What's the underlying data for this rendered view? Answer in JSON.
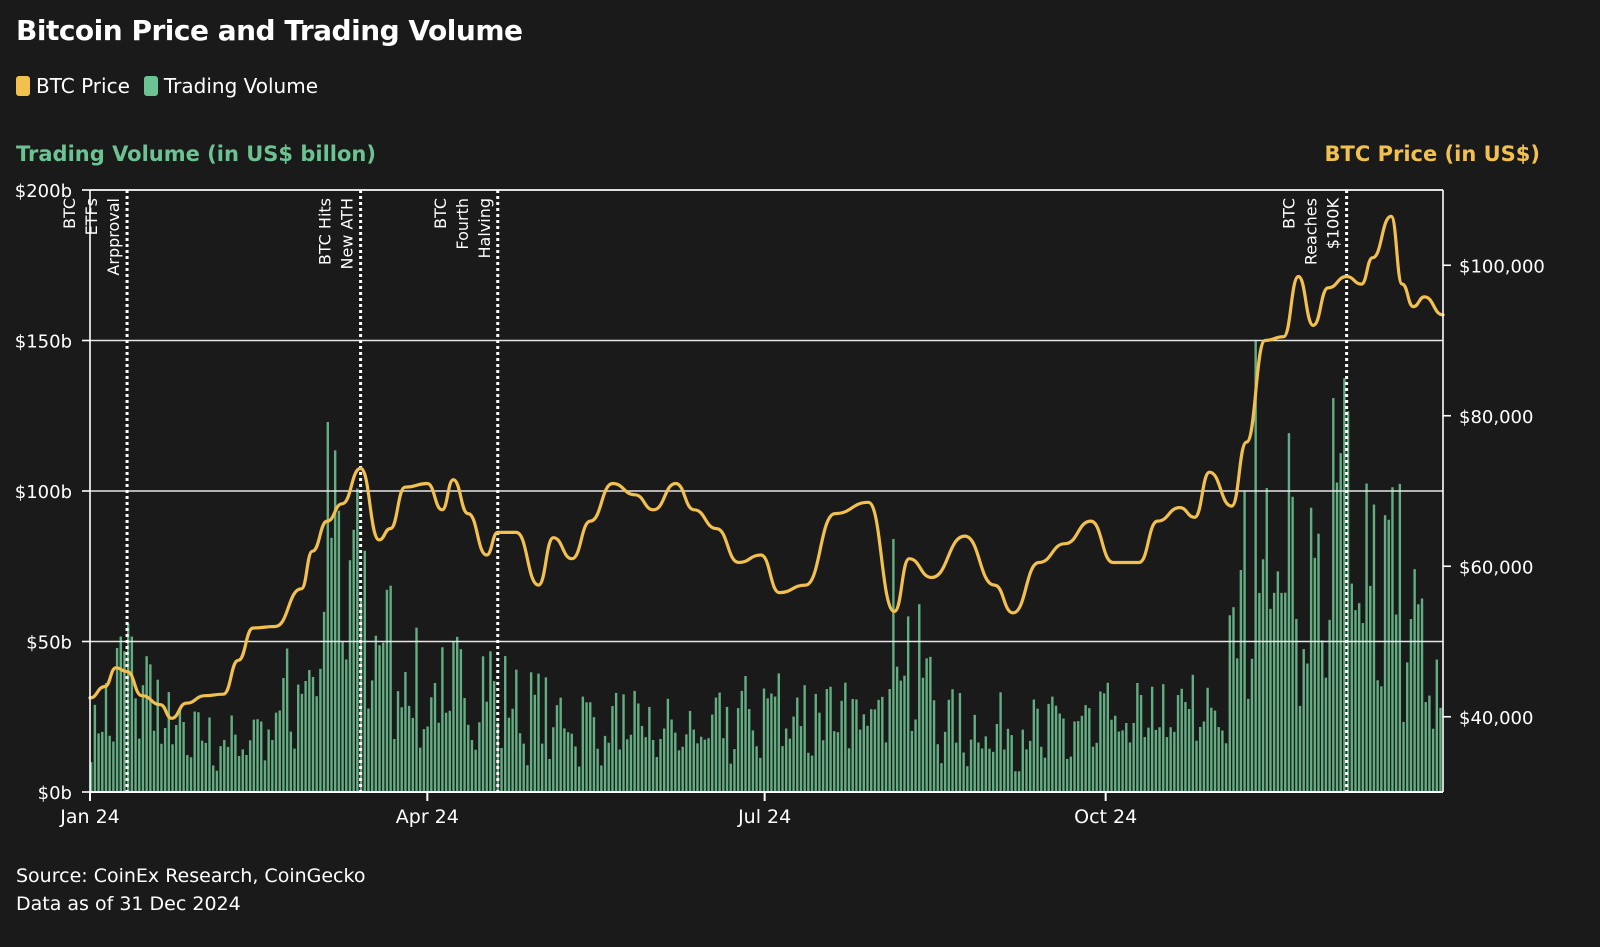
{
  "title": "Bitcoin Price and Trading Volume",
  "legend": [
    {
      "label": "BTC Price",
      "color": "#f2c04e"
    },
    {
      "label": "Trading Volume",
      "color": "#6cc391"
    }
  ],
  "source_line1": "Source: CoinEx Research, CoinGecko",
  "source_line2": "Data as of 31 Dec 2024",
  "chart_data": {
    "type": "bar+line",
    "title": "Bitcoin Price and Trading Volume",
    "y_left_label": "Trading Volume (in US$ billon)",
    "y_right_label": "BTC Price (in US$)",
    "y_left_ticks": [
      "$0b",
      "$50b",
      "$100b",
      "$150b",
      "$200b"
    ],
    "y_left_range": [
      0,
      200
    ],
    "y_right_ticks": [
      "$40,000",
      "$60,000",
      "$80,000",
      "$100,000"
    ],
    "y_right_range": [
      30000,
      110000
    ],
    "x_ticks": [
      {
        "label": "Jan 24",
        "date": "2024-01-01"
      },
      {
        "label": "Apr 24",
        "date": "2024-04-01"
      },
      {
        "label": "Jul 24",
        "date": "2024-07-01"
      },
      {
        "label": "Oct 24",
        "date": "2024-10-01"
      }
    ],
    "x_range": [
      "2024-01-01",
      "2024-12-31"
    ],
    "grid": true,
    "events": [
      {
        "date": "2024-01-11",
        "lines": [
          "BTC",
          "ETFs",
          "Arpproval"
        ]
      },
      {
        "date": "2024-03-14",
        "lines": [
          "BTC Hits",
          "New ATH"
        ]
      },
      {
        "date": "2024-04-20",
        "lines": [
          "BTC",
          "Fourth",
          "Halving"
        ]
      },
      {
        "date": "2024-12-05",
        "lines": [
          "BTC",
          "Reaches",
          "$100K"
        ]
      }
    ],
    "price_series": {
      "name": "BTC Price",
      "color": "#f2c04e",
      "points": [
        [
          "2024-01-01",
          42500
        ],
        [
          "2024-01-05",
          44000
        ],
        [
          "2024-01-08",
          46500
        ],
        [
          "2024-01-11",
          46000
        ],
        [
          "2024-01-15",
          42800
        ],
        [
          "2024-01-20",
          41600
        ],
        [
          "2024-01-23",
          39800
        ],
        [
          "2024-01-27",
          41800
        ],
        [
          "2024-02-01",
          42800
        ],
        [
          "2024-02-06",
          43000
        ],
        [
          "2024-02-10",
          47500
        ],
        [
          "2024-02-14",
          51800
        ],
        [
          "2024-02-20",
          52000
        ],
        [
          "2024-02-27",
          57000
        ],
        [
          "2024-03-01",
          62000
        ],
        [
          "2024-03-05",
          66000
        ],
        [
          "2024-03-09",
          68300
        ],
        [
          "2024-03-14",
          73000
        ],
        [
          "2024-03-19",
          63500
        ],
        [
          "2024-03-22",
          65000
        ],
        [
          "2024-03-26",
          70500
        ],
        [
          "2024-04-01",
          71000
        ],
        [
          "2024-04-05",
          67500
        ],
        [
          "2024-04-08",
          71500
        ],
        [
          "2024-04-12",
          67000
        ],
        [
          "2024-04-17",
          61500
        ],
        [
          "2024-04-20",
          64500
        ],
        [
          "2024-04-25",
          64500
        ],
        [
          "2024-05-01",
          57500
        ],
        [
          "2024-05-05",
          63800
        ],
        [
          "2024-05-10",
          61000
        ],
        [
          "2024-05-15",
          66000
        ],
        [
          "2024-05-21",
          71000
        ],
        [
          "2024-05-27",
          69500
        ],
        [
          "2024-06-01",
          67500
        ],
        [
          "2024-06-07",
          71000
        ],
        [
          "2024-06-12",
          67500
        ],
        [
          "2024-06-18",
          65000
        ],
        [
          "2024-06-24",
          60500
        ],
        [
          "2024-06-30",
          61500
        ],
        [
          "2024-07-05",
          56500
        ],
        [
          "2024-07-12",
          57500
        ],
        [
          "2024-07-20",
          67000
        ],
        [
          "2024-07-29",
          68500
        ],
        [
          "2024-08-05",
          54000
        ],
        [
          "2024-08-09",
          61000
        ],
        [
          "2024-08-15",
          58500
        ],
        [
          "2024-08-24",
          64000
        ],
        [
          "2024-09-01",
          57500
        ],
        [
          "2024-09-06",
          53800
        ],
        [
          "2024-09-13",
          60500
        ],
        [
          "2024-09-20",
          63000
        ],
        [
          "2024-09-27",
          66000
        ],
        [
          "2024-10-03",
          60500
        ],
        [
          "2024-10-10",
          60500
        ],
        [
          "2024-10-15",
          66000
        ],
        [
          "2024-10-21",
          67800
        ],
        [
          "2024-10-25",
          66500
        ],
        [
          "2024-10-29",
          72500
        ],
        [
          "2024-11-04",
          68000
        ],
        [
          "2024-11-08",
          76500
        ],
        [
          "2024-11-13",
          90000
        ],
        [
          "2024-11-18",
          90500
        ],
        [
          "2024-11-22",
          98500
        ],
        [
          "2024-11-26",
          92000
        ],
        [
          "2024-11-30",
          97000
        ],
        [
          "2024-12-05",
          98500
        ],
        [
          "2024-12-09",
          97500
        ],
        [
          "2024-12-12",
          101000
        ],
        [
          "2024-12-17",
          106500
        ],
        [
          "2024-12-20",
          97500
        ],
        [
          "2024-12-23",
          94500
        ],
        [
          "2024-12-26",
          95800
        ],
        [
          "2024-12-31",
          93400
        ]
      ]
    },
    "volume_series": {
      "name": "Trading Volume",
      "color": "#6cc391",
      "unit": "US$ billion",
      "keypoints": [
        [
          "2024-01-01",
          18
        ],
        [
          "2024-01-11",
          48
        ],
        [
          "2024-01-25",
          20
        ],
        [
          "2024-02-10",
          18
        ],
        [
          "2024-02-20",
          30
        ],
        [
          "2024-03-01",
          45
        ],
        [
          "2024-03-05",
          90
        ],
        [
          "2024-03-14",
          70
        ],
        [
          "2024-03-20",
          55
        ],
        [
          "2024-04-01",
          32
        ],
        [
          "2024-04-15",
          42
        ],
        [
          "2024-04-25",
          30
        ],
        [
          "2024-05-15",
          25
        ],
        [
          "2024-06-15",
          22
        ],
        [
          "2024-07-05",
          32
        ],
        [
          "2024-07-25",
          25
        ],
        [
          "2024-08-05",
          60
        ],
        [
          "2024-08-20",
          24
        ],
        [
          "2024-09-15",
          22
        ],
        [
          "2024-10-01",
          25
        ],
        [
          "2024-10-15",
          28
        ],
        [
          "2024-11-01",
          30
        ],
        [
          "2024-11-06",
          52
        ],
        [
          "2024-11-12",
          120
        ],
        [
          "2024-11-20",
          85
        ],
        [
          "2024-11-28",
          70
        ],
        [
          "2024-12-05",
          110
        ],
        [
          "2024-12-10",
          95
        ],
        [
          "2024-12-20",
          75
        ],
        [
          "2024-12-31",
          30
        ]
      ]
    }
  }
}
